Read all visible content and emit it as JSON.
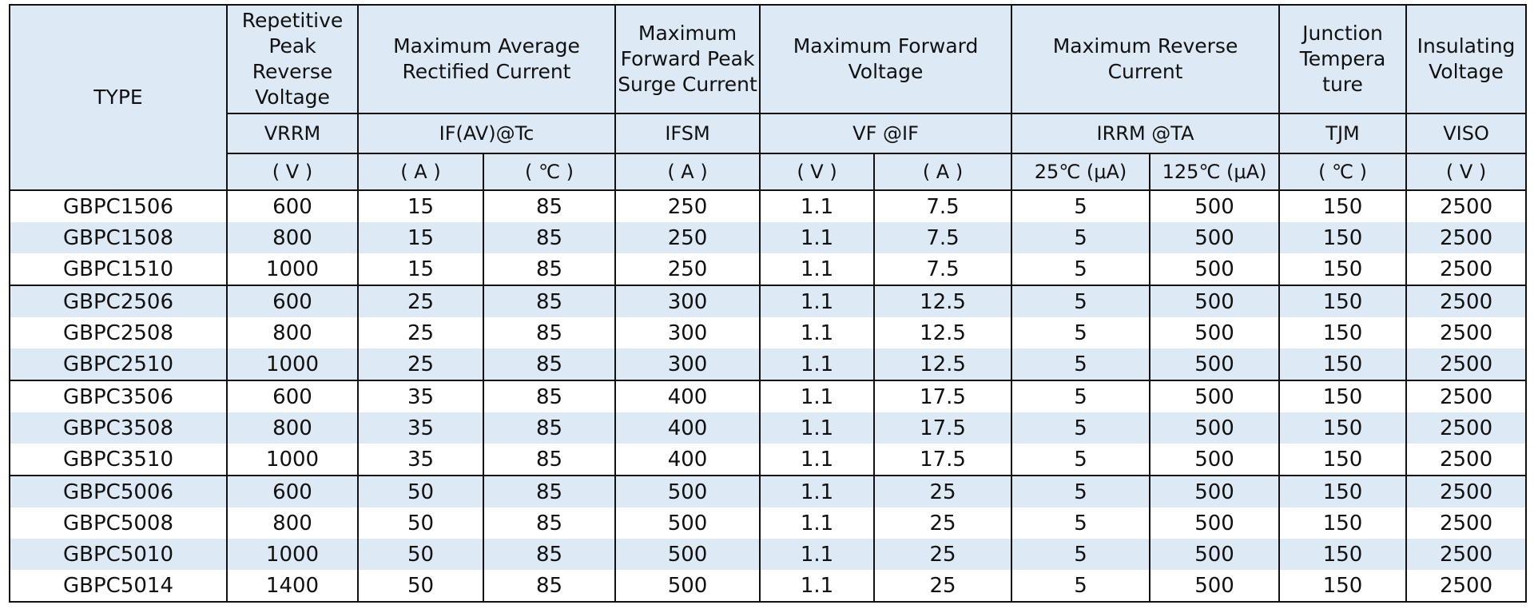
{
  "header": {
    "type": "TYPE",
    "vrrm_title": "Repetitive Peak Reverse Voltage",
    "avg_current_title": "Maximum Average Rectified Current",
    "surge_title": "Maximum Forward Peak Surge Current",
    "forward_voltage_title": "Maximum Forward Voltage",
    "reverse_current_title": "Maximum Reverse Current",
    "junction_title": "Junction Tempera ture",
    "insulating_title": "Insulating Voltage",
    "sym_vrrm": "VRRM",
    "sym_if": "IF(AV)@Tc",
    "sym_ifsm": "IFSM",
    "sym_vf": "VF @IF",
    "sym_irrm": "IRRM @TA",
    "sym_tjm": "TJM",
    "sym_viso": "VISO",
    "unit_v": "( V )",
    "unit_a": "( A )",
    "unit_c": "( ℃ )",
    "unit_a2": "( A )",
    "unit_v2": "( V )",
    "unit_a3": "( A )",
    "unit_25": "25℃  (μA)",
    "unit_125": "125℃ (μA)",
    "unit_c2": "( ℃ )",
    "unit_v3": "( V )"
  },
  "rows": [
    {
      "type": "GBPC1506",
      "vrrm": "600",
      "if": "15",
      "tc": "85",
      "ifsm": "250",
      "vf": "1.1",
      "at_if": "7.5",
      "ir25": "5",
      "ir125": "500",
      "tjm": "150",
      "viso": "2500"
    },
    {
      "type": "GBPC1508",
      "vrrm": "800",
      "if": "15",
      "tc": "85",
      "ifsm": "250",
      "vf": "1.1",
      "at_if": "7.5",
      "ir25": "5",
      "ir125": "500",
      "tjm": "150",
      "viso": "2500"
    },
    {
      "type": "GBPC1510",
      "vrrm": "1000",
      "if": "15",
      "tc": "85",
      "ifsm": "250",
      "vf": "1.1",
      "at_if": "7.5",
      "ir25": "5",
      "ir125": "500",
      "tjm": "150",
      "viso": "2500"
    },
    {
      "type": "GBPC2506",
      "vrrm": "600",
      "if": "25",
      "tc": "85",
      "ifsm": "300",
      "vf": "1.1",
      "at_if": "12.5",
      "ir25": "5",
      "ir125": "500",
      "tjm": "150",
      "viso": "2500"
    },
    {
      "type": "GBPC2508",
      "vrrm": "800",
      "if": "25",
      "tc": "85",
      "ifsm": "300",
      "vf": "1.1",
      "at_if": "12.5",
      "ir25": "5",
      "ir125": "500",
      "tjm": "150",
      "viso": "2500"
    },
    {
      "type": "GBPC2510",
      "vrrm": "1000",
      "if": "25",
      "tc": "85",
      "ifsm": "300",
      "vf": "1.1",
      "at_if": "12.5",
      "ir25": "5",
      "ir125": "500",
      "tjm": "150",
      "viso": "2500"
    },
    {
      "type": "GBPC3506",
      "vrrm": "600",
      "if": "35",
      "tc": "85",
      "ifsm": "400",
      "vf": "1.1",
      "at_if": "17.5",
      "ir25": "5",
      "ir125": "500",
      "tjm": "150",
      "viso": "2500"
    },
    {
      "type": "GBPC3508",
      "vrrm": "800",
      "if": "35",
      "tc": "85",
      "ifsm": "400",
      "vf": "1.1",
      "at_if": "17.5",
      "ir25": "5",
      "ir125": "500",
      "tjm": "150",
      "viso": "2500"
    },
    {
      "type": "GBPC3510",
      "vrrm": "1000",
      "if": "35",
      "tc": "85",
      "ifsm": "400",
      "vf": "1.1",
      "at_if": "17.5",
      "ir25": "5",
      "ir125": "500",
      "tjm": "150",
      "viso": "2500"
    },
    {
      "type": "GBPC5006",
      "vrrm": "600",
      "if": "50",
      "tc": "85",
      "ifsm": "500",
      "vf": "1.1",
      "at_if": "25",
      "ir25": "5",
      "ir125": "500",
      "tjm": "150",
      "viso": "2500"
    },
    {
      "type": "GBPC5008",
      "vrrm": "800",
      "if": "50",
      "tc": "85",
      "ifsm": "500",
      "vf": "1.1",
      "at_if": "25",
      "ir25": "5",
      "ir125": "500",
      "tjm": "150",
      "viso": "2500"
    },
    {
      "type": "GBPC5010",
      "vrrm": "1000",
      "if": "50",
      "tc": "85",
      "ifsm": "500",
      "vf": "1.1",
      "at_if": "25",
      "ir25": "5",
      "ir125": "500",
      "tjm": "150",
      "viso": "2500"
    },
    {
      "type": "GBPC5014",
      "vrrm": "1400",
      "if": "50",
      "tc": "85",
      "ifsm": "500",
      "vf": "1.1",
      "at_if": "25",
      "ir25": "5",
      "ir125": "500",
      "tjm": "150",
      "viso": "2500"
    }
  ],
  "colors": {
    "header_fill": "#dde9f4",
    "stripe_fill": "#dde9f4",
    "border": "#111111"
  }
}
